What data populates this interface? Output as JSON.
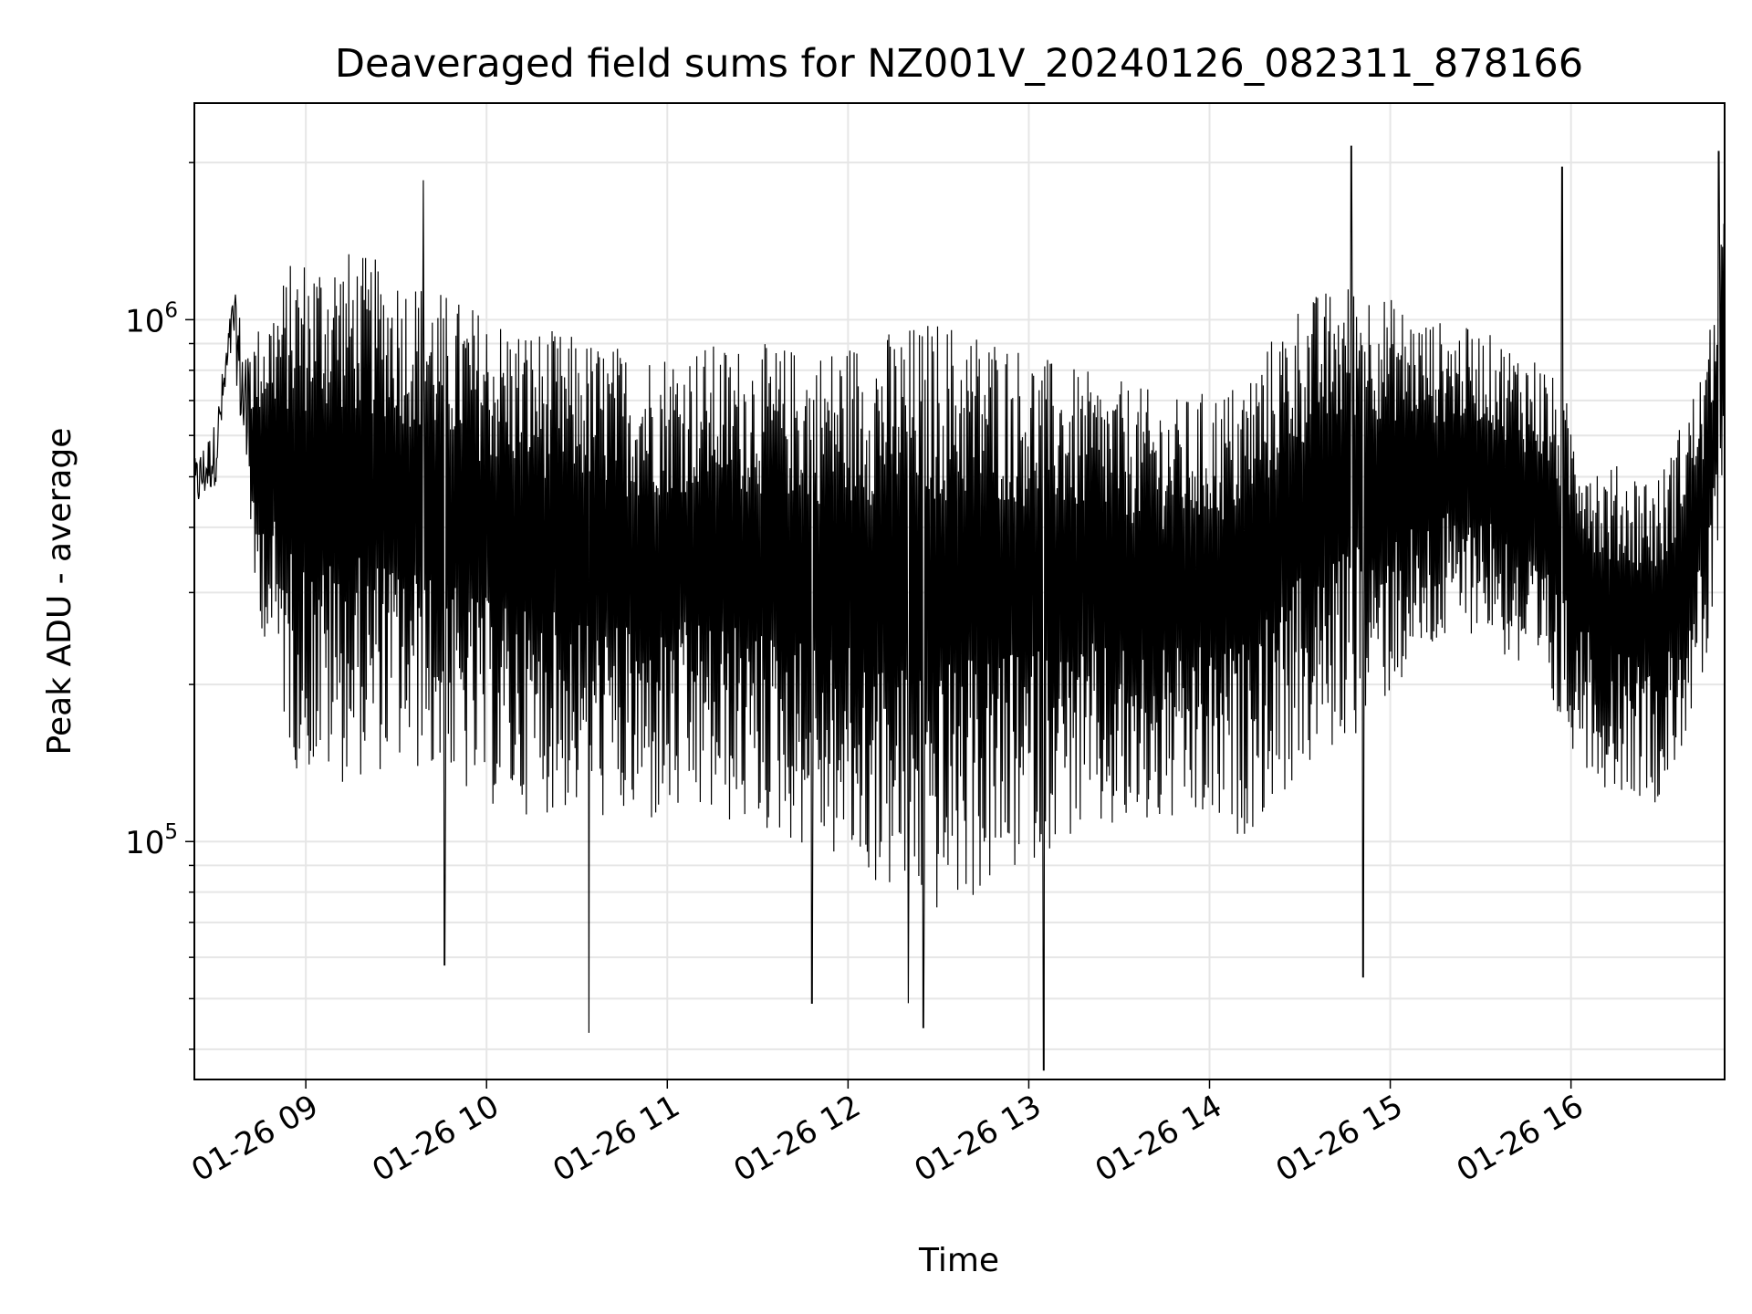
{
  "chart_data": {
    "type": "line",
    "title": "Deaveraged field sums for NZ001V_20240126_082311_878166",
    "xlabel": "Time",
    "ylabel": "Peak ADU - average",
    "x_scale": "time",
    "y_scale": "log",
    "xlim": [
      "01-26 08:23",
      "01-26 16:51"
    ],
    "ylim": [
      35000,
      2600000
    ],
    "grid": true,
    "legend": "none",
    "line_color": "#000000",
    "grid_color": "#e6e6e6",
    "x_ticks": [
      "01-26 09",
      "01-26 10",
      "01-26 11",
      "01-26 12",
      "01-26 13",
      "01-26 14",
      "01-26 15",
      "01-26 16"
    ],
    "y_ticks": [
      {
        "value": 100000,
        "base": "10",
        "exp": "5"
      },
      {
        "value": 1000000,
        "base": "10",
        "exp": "6"
      }
    ],
    "series": [
      {
        "x": [
          "01-26 08:23",
          "01-26 08:30",
          "01-26 08:36",
          "01-26 08:42",
          "01-26 08:48",
          "01-26 08:56",
          "01-26 09:10",
          "01-26 09:30",
          "01-26 09:50",
          "01-26 10:10",
          "01-26 10:30",
          "01-26 10:50",
          "01-26 11:10",
          "01-26 11:30",
          "01-26 11:50",
          "01-26 12:10",
          "01-26 12:30",
          "01-26 12:50",
          "01-26 13:10",
          "01-26 13:30",
          "01-26 13:50",
          "01-26 14:10",
          "01-26 14:30",
          "01-26 14:50",
          "01-26 15:10",
          "01-26 15:30",
          "01-26 15:50",
          "01-26 16:10",
          "01-26 16:30",
          "01-26 16:45",
          "01-26 16:51"
        ],
        "upper": [
          540000,
          640000,
          1150000,
          880000,
          1000000,
          1200000,
          1250000,
          1150000,
          1000000,
          900000,
          850000,
          800000,
          820000,
          820000,
          800000,
          850000,
          900000,
          850000,
          750000,
          700000,
          650000,
          700000,
          1000000,
          1100000,
          950000,
          900000,
          800000,
          500000,
          480000,
          800000,
          1500000
        ],
        "lower": [
          420000,
          480000,
          900000,
          320000,
          250000,
          160000,
          150000,
          160000,
          140000,
          130000,
          130000,
          120000,
          125000,
          120000,
          110000,
          95000,
          85000,
          95000,
          115000,
          115000,
          120000,
          115000,
          150000,
          185000,
          240000,
          280000,
          200000,
          140000,
          130000,
          220000,
          450000
        ],
        "spikes_max": [
          {
            "x": "01-26 09:39",
            "y": 1850000
          },
          {
            "x": "01-26 14:47",
            "y": 2150000
          },
          {
            "x": "01-26 15:57",
            "y": 1960000
          },
          {
            "x": "01-26 16:49",
            "y": 2100000
          }
        ],
        "spikes_min": [
          {
            "x": "01-26 09:46",
            "y": 58000
          },
          {
            "x": "01-26 10:34",
            "y": 43000
          },
          {
            "x": "01-26 11:48",
            "y": 49000
          },
          {
            "x": "01-26 12:20",
            "y": 49000
          },
          {
            "x": "01-26 12:25",
            "y": 44000
          },
          {
            "x": "01-26 13:05",
            "y": 36500
          },
          {
            "x": "01-26 14:51",
            "y": 55000
          }
        ]
      }
    ]
  }
}
